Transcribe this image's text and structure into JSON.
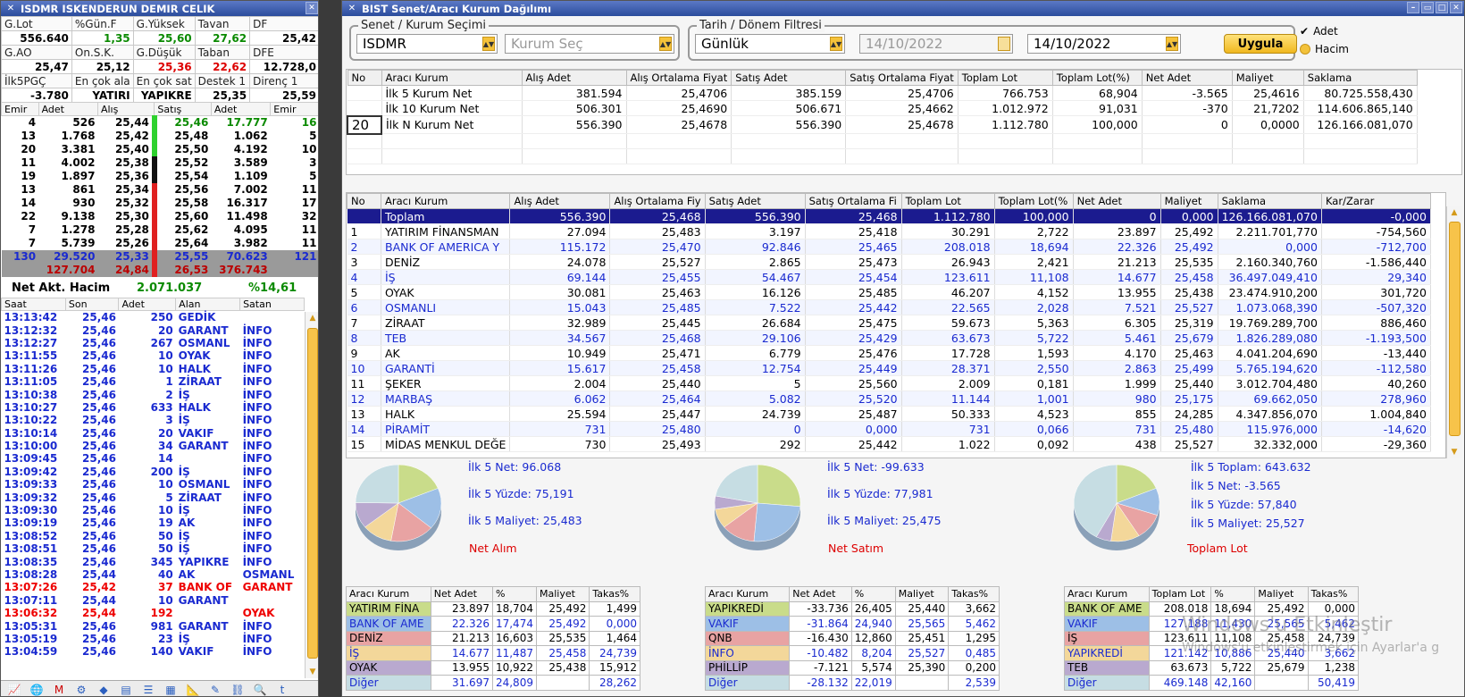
{
  "left": {
    "title": "ISDMR ISKENDERUN DEMIR CELIK",
    "info_rows": [
      {
        "labels": [
          "G.Lot",
          "%Gün.F",
          "G.Yüksek",
          "Tavan",
          "DF"
        ],
        "values": [
          "556.640",
          "1,35",
          "25,60",
          "27,62",
          "25,42"
        ],
        "colors": [
          "#000",
          "#0a8a00",
          "#0a8a00",
          "#0a8a00",
          "#000"
        ]
      },
      {
        "labels": [
          "G.AO",
          "On.S.K.",
          "G.Düşük",
          "Taban",
          "DFE"
        ],
        "values": [
          "25,47",
          "25,12",
          "25,36",
          "22,62",
          "12.728,0"
        ],
        "colors": [
          "#000",
          "#000",
          "#d00",
          "#d00",
          "#000"
        ]
      },
      {
        "labels": [
          "İlk5PGÇ",
          "En çok ala",
          "En çok sat",
          "Destek 1",
          "Direnç 1"
        ],
        "values": [
          "-3.780",
          "YATIRI",
          "YAPIKRE",
          "25,35",
          "25,59"
        ],
        "colors": [
          "#000",
          "#000",
          "#000",
          "#000",
          "#000"
        ]
      }
    ],
    "depth_headers": [
      "Emir",
      "Adet",
      "Alış",
      "Satış",
      "Adet",
      "Emir"
    ],
    "depth": [
      [
        "4",
        "526",
        "25,44",
        "25,46",
        "17.777",
        "16"
      ],
      [
        "13",
        "1.768",
        "25,42",
        "25,48",
        "1.062",
        "5"
      ],
      [
        "20",
        "3.381",
        "25,40",
        "25,50",
        "4.192",
        "10"
      ],
      [
        "11",
        "4.002",
        "25,38",
        "25,52",
        "3.589",
        "3"
      ],
      [
        "19",
        "1.897",
        "25,36",
        "25,54",
        "1.109",
        "5"
      ],
      [
        "13",
        "861",
        "25,34",
        "25,56",
        "7.002",
        "11"
      ],
      [
        "14",
        "930",
        "25,32",
        "25,58",
        "16.317",
        "17"
      ],
      [
        "22",
        "9.138",
        "25,30",
        "25,60",
        "11.498",
        "32"
      ],
      [
        "7",
        "1.278",
        "25,28",
        "25,62",
        "4.095",
        "11"
      ],
      [
        "7",
        "5.739",
        "25,26",
        "25,64",
        "3.982",
        "11"
      ]
    ],
    "total1": [
      "130",
      "29.520",
      "25,33",
      "25,55",
      "70.623",
      "121"
    ],
    "total2": [
      "127.704",
      "24,84",
      "26,53",
      "376.743"
    ],
    "net_label": "Net Akt. Hacim",
    "net_value": "2.071.037",
    "net_pct": "%14,61",
    "trade_headers": [
      "Saat",
      "Son",
      "Adet",
      "Alan",
      "Satan"
    ],
    "trades": [
      [
        "13:13:42",
        "25,46",
        "250",
        "GEDİK",
        "",
        "b"
      ],
      [
        "13:12:32",
        "25,46",
        "20",
        "GARANT",
        "İNFO",
        "b"
      ],
      [
        "13:12:27",
        "25,46",
        "267",
        "OSMANL",
        "İNFO",
        "b"
      ],
      [
        "13:11:55",
        "25,46",
        "10",
        "OYAK",
        "İNFO",
        "b"
      ],
      [
        "13:11:26",
        "25,46",
        "10",
        "HALK",
        "İNFO",
        "b"
      ],
      [
        "13:11:05",
        "25,46",
        "1",
        "ZİRAAT",
        "İNFO",
        "b"
      ],
      [
        "13:10:38",
        "25,46",
        "2",
        "İŞ",
        "İNFO",
        "b"
      ],
      [
        "13:10:27",
        "25,46",
        "633",
        "HALK",
        "İNFO",
        "b"
      ],
      [
        "13:10:22",
        "25,46",
        "3",
        "İŞ",
        "İNFO",
        "b"
      ],
      [
        "13:10:14",
        "25,46",
        "20",
        "VAKIF",
        "İNFO",
        "b"
      ],
      [
        "13:10:00",
        "25,46",
        "34",
        "GARANT",
        "İNFO",
        "b"
      ],
      [
        "13:09:45",
        "25,46",
        "14",
        "",
        "İNFO",
        "b"
      ],
      [
        "13:09:42",
        "25,46",
        "200",
        "İŞ",
        "İNFO",
        "b"
      ],
      [
        "13:09:33",
        "25,46",
        "10",
        "OSMANL",
        "İNFO",
        "b"
      ],
      [
        "13:09:32",
        "25,46",
        "5",
        "ZİRAAT",
        "İNFO",
        "b"
      ],
      [
        "13:09:30",
        "25,46",
        "10",
        "İŞ",
        "İNFO",
        "b"
      ],
      [
        "13:09:19",
        "25,46",
        "19",
        "AK",
        "İNFO",
        "b"
      ],
      [
        "13:08:52",
        "25,46",
        "50",
        "İŞ",
        "İNFO",
        "b"
      ],
      [
        "13:08:51",
        "25,46",
        "50",
        "İŞ",
        "İNFO",
        "b"
      ],
      [
        "13:08:35",
        "25,46",
        "345",
        "YAPIKRE",
        "İNFO",
        "b"
      ],
      [
        "13:08:28",
        "25,44",
        "40",
        "AK",
        "OSMANL",
        "b"
      ],
      [
        "13:07:26",
        "25,42",
        "37",
        "BANK OF",
        "GARANT",
        "r"
      ],
      [
        "13:07:11",
        "25,44",
        "10",
        "GARANT",
        "",
        "b"
      ],
      [
        "13:06:32",
        "25,44",
        "192",
        "",
        "OYAK",
        "r"
      ],
      [
        "13:05:31",
        "25,46",
        "981",
        "GARANT",
        "İNFO",
        "b"
      ],
      [
        "13:05:19",
        "25,46",
        "23",
        "İŞ",
        "İNFO",
        "b"
      ],
      [
        "13:04:59",
        "25,46",
        "140",
        "VAKIF",
        "İNFO",
        "b"
      ]
    ]
  },
  "right": {
    "title": "BIST Senet/Aracı Kurum Dağılımı",
    "fs1_legend": "Senet / Kurum Seçimi",
    "symbol": "ISDMR",
    "kurum_placeholder": "Kurum Seç",
    "fs2_legend": "Tarih / Dönem Filtresi",
    "period": "Günlük",
    "date_from": "14/10/2022",
    "date_to": "14/10/2022",
    "apply": "Uygula",
    "opt_adet": "Adet",
    "opt_hacim": "Hacim",
    "summary_headers": [
      "No",
      "Aracı Kurum",
      "Alış Adet",
      "Alış Ortalama Fiyat",
      "Satış Adet",
      "Satış Ortalama Fiyat",
      "Toplam Lot",
      "Toplam Lot(%)",
      "Net Adet",
      "Maliyet",
      "Saklama"
    ],
    "summary_rows": [
      [
        "",
        "İlk 5 Kurum Net",
        "381.594",
        "25,4706",
        "385.159",
        "25,4706",
        "766.753",
        "68,904",
        "-3.565",
        "25,4616",
        "80.725.558,430"
      ],
      [
        "",
        "İlk 10 Kurum Net",
        "506.301",
        "25,4690",
        "506.671",
        "25,4662",
        "1.012.972",
        "91,031",
        "-370",
        "21,7202",
        "114.606.865,140"
      ],
      [
        "20",
        "İlk N Kurum Net",
        "556.390",
        "25,4678",
        "556.390",
        "25,4678",
        "1.112.780",
        "100,000",
        "0",
        "0,0000",
        "126.166.081,070"
      ]
    ],
    "main_headers": [
      "No",
      "Aracı Kurum",
      "Alış Adet",
      "Alış Ortalama Fiy",
      "Satış Adet",
      "Satış Ortalama Fi",
      "Toplam Lot",
      "Toplam Lot(%",
      "Net Adet",
      "Maliyet",
      "Saklama",
      "Kar/Zarar"
    ],
    "main_rows": [
      [
        "",
        "Toplam",
        "556.390",
        "25,468",
        "556.390",
        "25,468",
        "1.112.780",
        "100,000",
        "0",
        "0,000",
        "126.166.081,070",
        "-0,000"
      ],
      [
        "1",
        "YATIRIM FİNANSMAN",
        "27.094",
        "25,483",
        "3.197",
        "25,418",
        "30.291",
        "2,722",
        "23.897",
        "25,492",
        "2.211.701,770",
        "-754,560"
      ],
      [
        "2",
        "BANK OF AMERICA Y",
        "115.172",
        "25,470",
        "92.846",
        "25,465",
        "208.018",
        "18,694",
        "22.326",
        "25,492",
        "0,000",
        "-712,700"
      ],
      [
        "3",
        "DENİZ",
        "24.078",
        "25,527",
        "2.865",
        "25,473",
        "26.943",
        "2,421",
        "21.213",
        "25,535",
        "2.160.340,760",
        "-1.586,440"
      ],
      [
        "4",
        "İŞ",
        "69.144",
        "25,455",
        "54.467",
        "25,454",
        "123.611",
        "11,108",
        "14.677",
        "25,458",
        "36.497.049,410",
        "29,340"
      ],
      [
        "5",
        "OYAK",
        "30.081",
        "25,463",
        "16.126",
        "25,485",
        "46.207",
        "4,152",
        "13.955",
        "25,438",
        "23.474.910,200",
        "301,720"
      ],
      [
        "6",
        "OSMANLI",
        "15.043",
        "25,485",
        "7.522",
        "25,442",
        "22.565",
        "2,028",
        "7.521",
        "25,527",
        "1.073.068,390",
        "-507,320"
      ],
      [
        "7",
        "ZİRAAT",
        "32.989",
        "25,445",
        "26.684",
        "25,475",
        "59.673",
        "5,363",
        "6.305",
        "25,319",
        "19.769.289,700",
        "886,460"
      ],
      [
        "8",
        "TEB",
        "34.567",
        "25,468",
        "29.106",
        "25,429",
        "63.673",
        "5,722",
        "5.461",
        "25,679",
        "1.826.289,080",
        "-1.193,500"
      ],
      [
        "9",
        "AK",
        "10.949",
        "25,471",
        "6.779",
        "25,476",
        "17.728",
        "1,593",
        "4.170",
        "25,463",
        "4.041.204,690",
        "-13,440"
      ],
      [
        "10",
        "GARANTİ",
        "15.617",
        "25,458",
        "12.754",
        "25,449",
        "28.371",
        "2,550",
        "2.863",
        "25,499",
        "5.765.194,620",
        "-112,580"
      ],
      [
        "11",
        "ŞEKER",
        "2.004",
        "25,440",
        "5",
        "25,560",
        "2.009",
        "0,181",
        "1.999",
        "25,440",
        "3.012.704,480",
        "40,260"
      ],
      [
        "12",
        "MARBAŞ",
        "6.062",
        "25,464",
        "5.082",
        "25,520",
        "11.144",
        "1,001",
        "980",
        "25,175",
        "69.662,050",
        "278,960"
      ],
      [
        "13",
        "HALK",
        "25.594",
        "25,447",
        "24.739",
        "25,487",
        "50.333",
        "4,523",
        "855",
        "24,285",
        "4.347.856,070",
        "1.004,840"
      ],
      [
        "14",
        "PİRAMİT",
        "731",
        "25,480",
        "0",
        "0,000",
        "731",
        "0,066",
        "731",
        "25,480",
        "115.976,000",
        "-14,620"
      ],
      [
        "15",
        "MİDAS MENKUL DEĞE",
        "730",
        "25,493",
        "292",
        "25,442",
        "1.022",
        "0,092",
        "438",
        "25,527",
        "32.332,000",
        "-29,360"
      ]
    ],
    "pies": [
      {
        "title": "Net Alım",
        "labels": [
          "İlk 5 Net: 96.068",
          "İlk 5 Yüzde: 75,191",
          "İlk 5 Maliyet: 25,483"
        ],
        "slices": [
          18.704,
          17.474,
          16.603,
          11.487,
          10.922,
          24.809
        ],
        "headers": [
          "Aracı Kurum",
          "Net Adet",
          "%",
          "Maliyet",
          "Takas%"
        ],
        "rows": [
          [
            "YATIRIM FİNA",
            "23.897",
            "18,704",
            "25,492",
            "1,499"
          ],
          [
            "BANK OF AME",
            "22.326",
            "17,474",
            "25,492",
            "0,000"
          ],
          [
            "DENİZ",
            "21.213",
            "16,603",
            "25,535",
            "1,464"
          ],
          [
            "İŞ",
            "14.677",
            "11,487",
            "25,458",
            "24,739"
          ],
          [
            "OYAK",
            "13.955",
            "10,922",
            "25,438",
            "15,912"
          ],
          [
            "Diğer",
            "31.697",
            "24,809",
            "",
            "28,262"
          ]
        ]
      },
      {
        "title": "Net Satım",
        "labels": [
          "İlk 5 Net: -99.633",
          "İlk 5 Yüzde: 77,981",
          "İlk 5 Maliyet: 25,475"
        ],
        "slices": [
          26.405,
          24.94,
          12.86,
          8.204,
          5.574,
          22.019
        ],
        "headers": [
          "Aracı Kurum",
          "Net Adet",
          "%",
          "Maliyet",
          "Takas%"
        ],
        "rows": [
          [
            "YAPIKREDİ",
            "-33.736",
            "26,405",
            "25,440",
            "3,662"
          ],
          [
            "VAKIF",
            "-31.864",
            "24,940",
            "25,565",
            "5,462"
          ],
          [
            "QNB",
            "-16.430",
            "12,860",
            "25,451",
            "1,295"
          ],
          [
            "İNFO",
            "-10.482",
            "8,204",
            "25,527",
            "0,485"
          ],
          [
            "PHİLLİP",
            "-7.121",
            "5,574",
            "25,390",
            "0,200"
          ],
          [
            "Diğer",
            "-28.132",
            "22,019",
            "",
            "2,539"
          ]
        ]
      },
      {
        "title": "Toplam Lot",
        "labels": [
          "İlk 5 Toplam: 643.632",
          "İlk 5 Net: -3.565",
          "İlk 5 Yüzde: 57,840",
          "İlk 5 Maliyet: 25,527"
        ],
        "slices": [
          18.694,
          11.43,
          11.108,
          10.886,
          5.722,
          42.16
        ],
        "headers": [
          "Aracı Kurum",
          "Toplam Lot",
          "%",
          "Maliyet",
          "Takas%"
        ],
        "rows": [
          [
            "BANK OF AME",
            "208.018",
            "18,694",
            "25,492",
            "0,000"
          ],
          [
            "VAKIF",
            "127.188",
            "11,430",
            "25,565",
            "5,462"
          ],
          [
            "İŞ",
            "123.611",
            "11,108",
            "25,458",
            "24,739"
          ],
          [
            "YAPIKREDİ",
            "121.142",
            "10,886",
            "25,440",
            "3,662"
          ],
          [
            "TEB",
            "63.673",
            "5,722",
            "25,679",
            "1,238"
          ],
          [
            "Diğer",
            "469.148",
            "42,160",
            "",
            "50,419"
          ]
        ]
      }
    ],
    "slice_colors": [
      "#c9dc8a",
      "#9dbfe6",
      "#e8a3a3",
      "#f3d79a",
      "#b9a9cf",
      "#c6dde3"
    ],
    "watermark1": "Windows'u Etkinleştir",
    "watermark2": "Windows'u etkinleştirmek için Ayarlar'a g"
  },
  "taskbar_icons": [
    "chart-icon",
    "globe-icon",
    "mail-icon",
    "tools-icon",
    "news-icon",
    "doc-icon",
    "list-icon",
    "calendar-icon",
    "ruler-icon",
    "pen-icon",
    "link-icon",
    "search-icon",
    "twitter-icon"
  ]
}
